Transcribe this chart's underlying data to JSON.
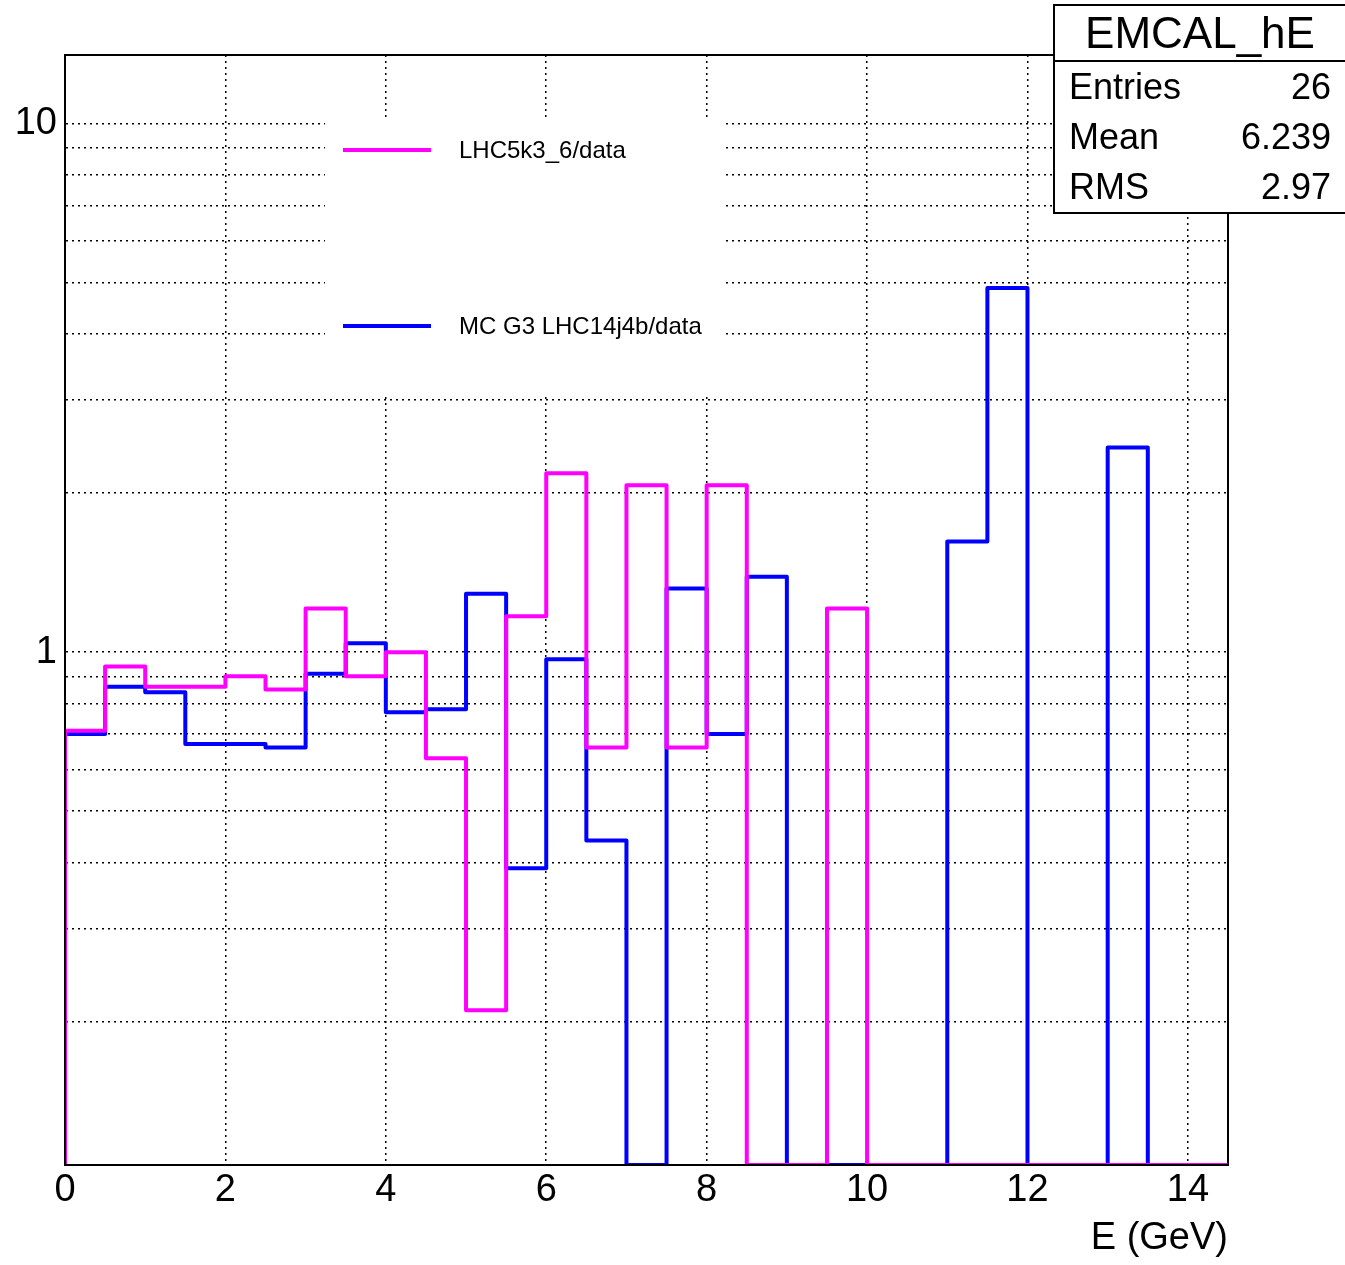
{
  "chart_data": {
    "type": "histogram",
    "xlabel": "E (GeV)",
    "bins": [
      0,
      0.5,
      1,
      1.5,
      2,
      2.5,
      3,
      3.5,
      4,
      4.5,
      5,
      5.5,
      6,
      6.5,
      7,
      7.5,
      8,
      8.5,
      9,
      9.5,
      10,
      10.5,
      11,
      11.5,
      12,
      12.5,
      13,
      13.5,
      14,
      14.5
    ],
    "series": [
      {
        "name": "LHC5k3_6/data",
        "color": "#ff00ff",
        "values": [
          0.71,
          0.94,
          0.86,
          0.86,
          0.9,
          0.85,
          1.21,
          0.9,
          1.0,
          0.63,
          0.21,
          1.17,
          2.18,
          0.66,
          2.07,
          0.66,
          2.07,
          null,
          null,
          1.21,
          null,
          null,
          null,
          null,
          null,
          null,
          null,
          null,
          null
        ]
      },
      {
        "name": "MC G3 LHC14j4b/data",
        "color": "#0000ff",
        "values": [
          0.7,
          0.86,
          0.84,
          0.67,
          0.67,
          0.66,
          0.91,
          1.04,
          0.77,
          0.78,
          1.29,
          0.39,
          0.97,
          0.44,
          null,
          1.32,
          0.7,
          1.39,
          null,
          null,
          null,
          null,
          1.62,
          4.89,
          null,
          null,
          2.44,
          null,
          null
        ]
      }
    ],
    "xlim": [
      0,
      14.5
    ],
    "xticks": [
      0,
      2,
      4,
      6,
      8,
      10,
      12,
      14
    ],
    "ylim": [
      0.107,
      13.5
    ],
    "yticks": [
      {
        "value": 0.2,
        "label": null
      },
      {
        "value": 0.3,
        "label": null
      },
      {
        "value": 0.4,
        "label": null
      },
      {
        "value": 0.5,
        "label": null
      },
      {
        "value": 0.6,
        "label": null
      },
      {
        "value": 0.7,
        "label": null
      },
      {
        "value": 0.8,
        "label": null
      },
      {
        "value": 0.9,
        "label": null
      },
      1,
      {
        "value": 2,
        "label": null
      },
      {
        "value": 3,
        "label": null
      },
      {
        "value": 4,
        "label": null
      },
      {
        "value": 5,
        "label": null
      },
      {
        "value": 6,
        "label": null
      },
      {
        "value": 7,
        "label": null
      },
      {
        "value": 8,
        "label": null
      },
      {
        "value": 9,
        "label": null
      },
      10
    ],
    "log": true,
    "grid": true,
    "legend": "top",
    "annotations": [
      "EMCAL_hE",
      "Entries",
      "26",
      "Mean",
      "6.239",
      "RMS",
      "2.97"
    ]
  }
}
